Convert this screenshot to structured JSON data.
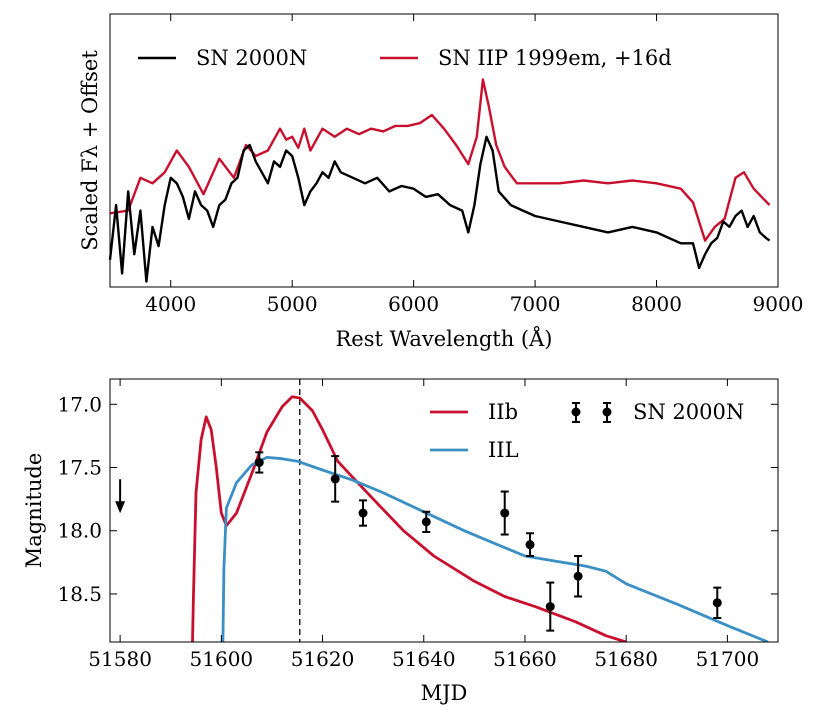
{
  "chart_data": [
    {
      "type": "line",
      "xlabel": "Rest Wavelength (Å)",
      "ylabel": "Scaled Fλ + Offset",
      "xlim": [
        3500,
        9000
      ],
      "ylim": [
        0,
        1
      ],
      "xticks": [
        4000,
        5000,
        6000,
        7000,
        8000,
        9000
      ],
      "xtick_labels": [
        "4000",
        "5000",
        "6000",
        "7000",
        "8000",
        "9000"
      ],
      "legend": [
        {
          "label": "SN 2000N",
          "color": "#000000"
        },
        {
          "label": "SN IIP 1999em, +16d",
          "color": "#c8102e"
        }
      ],
      "series": [
        {
          "name": "SN IIP 1999em, +16d",
          "color": "#c8102e",
          "x": [
            3500,
            3650,
            3750,
            3850,
            3950,
            4050,
            4150,
            4270,
            4400,
            4520,
            4620,
            4700,
            4800,
            4900,
            4950,
            5000,
            5050,
            5100,
            5150,
            5250,
            5350,
            5450,
            5550,
            5650,
            5750,
            5850,
            5950,
            6050,
            6150,
            6250,
            6350,
            6450,
            6520,
            6570,
            6620,
            6680,
            6750,
            6850,
            7000,
            7200,
            7400,
            7600,
            7800,
            8000,
            8200,
            8300,
            8400,
            8480,
            8560,
            8650,
            8720,
            8800,
            8930
          ],
          "y": [
            0.27,
            0.28,
            0.4,
            0.38,
            0.42,
            0.5,
            0.44,
            0.34,
            0.47,
            0.4,
            0.52,
            0.48,
            0.5,
            0.58,
            0.54,
            0.55,
            0.51,
            0.58,
            0.5,
            0.58,
            0.55,
            0.58,
            0.56,
            0.58,
            0.57,
            0.59,
            0.59,
            0.6,
            0.63,
            0.58,
            0.52,
            0.45,
            0.55,
            0.76,
            0.66,
            0.52,
            0.44,
            0.38,
            0.38,
            0.38,
            0.39,
            0.38,
            0.39,
            0.38,
            0.36,
            0.31,
            0.17,
            0.22,
            0.25,
            0.4,
            0.42,
            0.36,
            0.3
          ]
        },
        {
          "name": "SN 2000N",
          "color": "#000000",
          "x": [
            3500,
            3550,
            3600,
            3650,
            3700,
            3750,
            3800,
            3850,
            3900,
            3950,
            4000,
            4050,
            4100,
            4150,
            4200,
            4250,
            4300,
            4350,
            4400,
            4450,
            4500,
            4550,
            4600,
            4650,
            4700,
            4750,
            4800,
            4850,
            4900,
            4950,
            5000,
            5050,
            5100,
            5150,
            5200,
            5250,
            5300,
            5350,
            5400,
            5500,
            5600,
            5700,
            5800,
            5900,
            6000,
            6100,
            6200,
            6300,
            6400,
            6450,
            6500,
            6550,
            6600,
            6650,
            6700,
            6800,
            6900,
            7000,
            7200,
            7400,
            7600,
            7800,
            8000,
            8200,
            8300,
            8350,
            8400,
            8450,
            8500,
            8550,
            8600,
            8650,
            8700,
            8750,
            8800,
            8850,
            8900,
            8930
          ],
          "y": [
            0.1,
            0.3,
            0.05,
            0.35,
            0.12,
            0.28,
            0.02,
            0.22,
            0.15,
            0.3,
            0.4,
            0.38,
            0.33,
            0.25,
            0.35,
            0.3,
            0.28,
            0.22,
            0.3,
            0.32,
            0.38,
            0.4,
            0.5,
            0.52,
            0.46,
            0.42,
            0.38,
            0.46,
            0.44,
            0.5,
            0.48,
            0.4,
            0.3,
            0.35,
            0.38,
            0.42,
            0.4,
            0.46,
            0.42,
            0.4,
            0.38,
            0.4,
            0.35,
            0.37,
            0.36,
            0.33,
            0.34,
            0.3,
            0.28,
            0.2,
            0.3,
            0.45,
            0.55,
            0.5,
            0.35,
            0.3,
            0.28,
            0.26,
            0.24,
            0.22,
            0.2,
            0.22,
            0.2,
            0.16,
            0.16,
            0.07,
            0.12,
            0.16,
            0.18,
            0.24,
            0.22,
            0.26,
            0.28,
            0.22,
            0.26,
            0.2,
            0.18,
            0.17
          ]
        }
      ]
    },
    {
      "type": "line",
      "xlabel": "MJD",
      "ylabel": "Magnitude",
      "xlim": [
        51578,
        51710
      ],
      "ylim": [
        18.88,
        16.8
      ],
      "y_inverted": true,
      "xticks": [
        51580,
        51600,
        51620,
        51640,
        51660,
        51680,
        51700
      ],
      "xtick_labels": [
        "51580",
        "51600",
        "51620",
        "51640",
        "51660",
        "51680",
        "51700"
      ],
      "yticks": [
        17.0,
        17.5,
        18.0,
        18.5
      ],
      "ytick_labels": [
        "17.0",
        "17.5",
        "18.0",
        "18.5"
      ],
      "vline": 51615.5,
      "upper_limit_arrow": {
        "x": 51580,
        "y": 17.83
      },
      "legend": [
        {
          "label": "IIb",
          "color": "#c8102e"
        },
        {
          "label": "IIL",
          "color": "#3a8fc4"
        },
        {
          "label": "SN 2000N",
          "color": "#000000"
        }
      ],
      "series": [
        {
          "name": "IIb",
          "color": "#c8102e",
          "x": [
            51594.3,
            51594.5,
            51595,
            51596,
            51597,
            51598,
            51599,
            51600,
            51601,
            51603,
            51606,
            51609,
            51612,
            51614,
            51615.5,
            51618,
            51620,
            51623,
            51626,
            51630,
            51636,
            51642,
            51650,
            51656,
            51662,
            51670,
            51676,
            51680
          ],
          "y": [
            18.88,
            18.5,
            17.7,
            17.28,
            17.1,
            17.2,
            17.5,
            17.86,
            17.96,
            17.86,
            17.55,
            17.22,
            17.02,
            16.94,
            16.95,
            17.05,
            17.2,
            17.45,
            17.58,
            17.75,
            18.0,
            18.2,
            18.4,
            18.52,
            18.6,
            18.72,
            18.83,
            18.88
          ]
        },
        {
          "name": "IIL",
          "color": "#3a8fc4",
          "x": [
            51600.3,
            51600.5,
            51601,
            51603,
            51606,
            51609,
            51612,
            51615,
            51620,
            51626,
            51632,
            51640,
            51648,
            51654,
            51660,
            51666,
            51672,
            51676,
            51680,
            51690,
            51700,
            51708
          ],
          "y": [
            18.88,
            18.3,
            17.82,
            17.62,
            17.48,
            17.42,
            17.43,
            17.45,
            17.52,
            17.6,
            17.7,
            17.85,
            18.0,
            18.1,
            18.2,
            18.24,
            18.28,
            18.32,
            18.42,
            18.58,
            18.75,
            18.88
          ]
        },
        {
          "name": "SN 2000N",
          "color": "#000000",
          "points": [
            {
              "x": 51607.5,
              "y": 17.46,
              "err": 0.08
            },
            {
              "x": 51622.5,
              "y": 17.59,
              "err": 0.18
            },
            {
              "x": 51628.0,
              "y": 17.86,
              "err": 0.1
            },
            {
              "x": 51640.5,
              "y": 17.93,
              "err": 0.08
            },
            {
              "x": 51656.0,
              "y": 17.86,
              "err": 0.17
            },
            {
              "x": 51661.0,
              "y": 18.11,
              "err": 0.09
            },
            {
              "x": 51665.0,
              "y": 18.6,
              "err": 0.19
            },
            {
              "x": 51670.5,
              "y": 18.36,
              "err": 0.16
            },
            {
              "x": 51698.0,
              "y": 18.57,
              "err": 0.12
            }
          ]
        }
      ]
    }
  ]
}
